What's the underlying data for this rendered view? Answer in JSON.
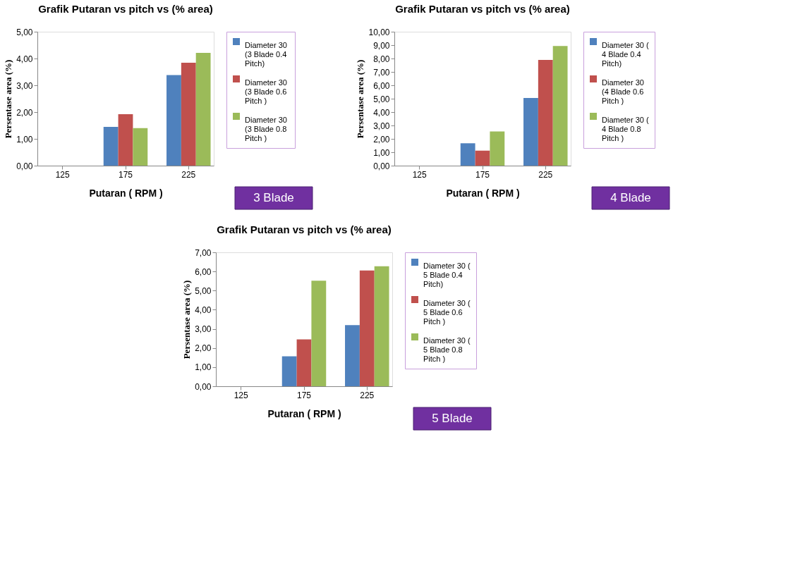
{
  "chart_data": [
    {
      "type": "bar",
      "title": "Grafik Putaran vs pitch vs (% area)",
      "xlabel": "Putaran ( RPM )",
      "ylabel": "Persentase area (%)",
      "categories": [
        "125",
        "175",
        "225"
      ],
      "series": [
        {
          "name": "Diameter 30 (3 Blade 0.4 Pitch)",
          "color": "#4f81bd",
          "values": [
            null,
            1.45,
            3.38
          ]
        },
        {
          "name": "Diameter 30 (3 Blade 0.6 Pitch )",
          "color": "#c0504d",
          "values": [
            null,
            1.92,
            3.84
          ]
        },
        {
          "name": "Diameter 30 (3 Blade  0.8 Pitch )",
          "color": "#9bbb59",
          "values": [
            null,
            1.4,
            4.21
          ]
        }
      ],
      "ylim": [
        0,
        5
      ],
      "yticks": [
        {
          "value": 0,
          "label": "0,00"
        },
        {
          "value": 1,
          "label": "1,00"
        },
        {
          "value": 2,
          "label": "2,00"
        },
        {
          "value": 3,
          "label": "3,00"
        },
        {
          "value": 4,
          "label": "4,00"
        },
        {
          "value": 5,
          "label": "5,00"
        }
      ],
      "legend": "right",
      "annotations": [
        "3 Blade"
      ]
    },
    {
      "type": "bar",
      "title": "Grafik Putaran vs pitch vs (% area)",
      "xlabel": "Putaran ( RPM )",
      "ylabel": "Persentase area (%)",
      "categories": [
        "125",
        "175",
        "225"
      ],
      "series": [
        {
          "name": "Diameter 30 ( 4 Blade 0.4 Pitch)",
          "color": "#4f81bd",
          "values": [
            null,
            1.67,
            5.05
          ]
        },
        {
          "name": "Diameter 30 (4 Blade  0.6 Pitch )",
          "color": "#c0504d",
          "values": [
            null,
            1.12,
            7.9
          ]
        },
        {
          "name": "Diameter 30 ( 4 Blade 0.8 Pitch )",
          "color": "#9bbb59",
          "values": [
            null,
            2.55,
            8.93
          ]
        }
      ],
      "ylim": [
        0,
        10
      ],
      "yticks": [
        {
          "value": 0,
          "label": "0,00"
        },
        {
          "value": 1,
          "label": "1,00"
        },
        {
          "value": 2,
          "label": "2,00"
        },
        {
          "value": 3,
          "label": "3,00"
        },
        {
          "value": 4,
          "label": "4,00"
        },
        {
          "value": 5,
          "label": "5,00"
        },
        {
          "value": 6,
          "label": "6,00"
        },
        {
          "value": 7,
          "label": "7,00"
        },
        {
          "value": 8,
          "label": "8,00"
        },
        {
          "value": 9,
          "label": "9,00"
        },
        {
          "value": 10,
          "label": "10,00"
        }
      ],
      "legend": "right",
      "annotations": [
        "4 Blade"
      ]
    },
    {
      "type": "bar",
      "title": "Grafik Putaran vs  pitch vs (% area)",
      "xlabel": "Putaran ( RPM )",
      "ylabel": "Persentase area (%)",
      "categories": [
        "125",
        "175",
        "225"
      ],
      "series": [
        {
          "name": "Diameter 30 ( 5 Blade 0.4 Pitch)",
          "color": "#4f81bd",
          "values": [
            null,
            1.57,
            3.2
          ]
        },
        {
          "name": "Diameter 30 ( 5 Blade  0.6 Pitch )",
          "color": "#c0504d",
          "values": [
            null,
            2.45,
            6.05
          ]
        },
        {
          "name": "Diameter 30 (  5 Blade 0.8 Pitch )",
          "color": "#9bbb59",
          "values": [
            null,
            5.52,
            6.27
          ]
        }
      ],
      "ylim": [
        0,
        7
      ],
      "yticks": [
        {
          "value": 0,
          "label": "0,00"
        },
        {
          "value": 1,
          "label": "1,00"
        },
        {
          "value": 2,
          "label": "2,00"
        },
        {
          "value": 3,
          "label": "3,00"
        },
        {
          "value": 4,
          "label": "4,00"
        },
        {
          "value": 5,
          "label": "5,00"
        },
        {
          "value": 6,
          "label": "6,00"
        },
        {
          "value": 7,
          "label": "7,00"
        }
      ],
      "legend": "right",
      "annotations": [
        "5 Blade"
      ]
    }
  ]
}
